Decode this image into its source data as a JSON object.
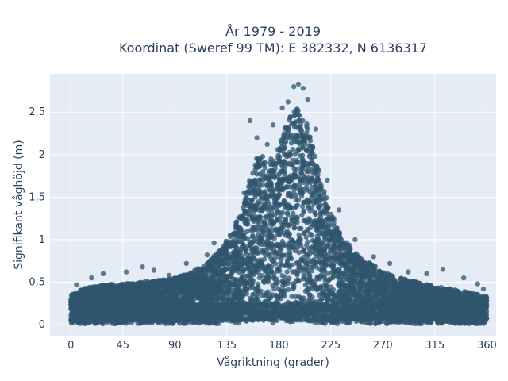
{
  "chart_data": {
    "type": "scatter",
    "title_line1": "År 1979 - 2019",
    "title_line2": "Koordinat (Sweref 99 TM): E 382332, N 6136317",
    "xlabel": "Vågriktning (grader)",
    "ylabel": "Signifikant våghöjd (m)",
    "xlim": [
      -18,
      368
    ],
    "ylim": [
      -0.13,
      2.95
    ],
    "xticks": [
      0,
      45,
      90,
      135,
      180,
      225,
      270,
      315,
      360
    ],
    "xtick_labels": [
      "0",
      "45",
      "90",
      "135",
      "180",
      "225",
      "270",
      "315",
      "360"
    ],
    "yticks": [
      0,
      0.5,
      1,
      1.5,
      2,
      2.5
    ],
    "ytick_labels": [
      "0",
      "0,5",
      "1",
      "1,5",
      "2",
      "2,5"
    ],
    "grid": true,
    "legend": "none",
    "marker_color": "#2f566e",
    "envelope": {
      "x": [
        0,
        10,
        20,
        30,
        45,
        60,
        75,
        90,
        105,
        120,
        130,
        140,
        150,
        155,
        160,
        165,
        170,
        175,
        180,
        185,
        190,
        195,
        200,
        205,
        210,
        215,
        220,
        225,
        230,
        240,
        250,
        260,
        270,
        285,
        300,
        315,
        330,
        345,
        360
      ],
      "y_max": [
        0.35,
        0.42,
        0.45,
        0.48,
        0.48,
        0.5,
        0.52,
        0.55,
        0.62,
        0.75,
        0.9,
        1.1,
        1.45,
        1.75,
        1.95,
        2.0,
        1.95,
        1.95,
        2.1,
        2.3,
        2.45,
        2.55,
        2.5,
        2.35,
        2.1,
        1.8,
        1.55,
        1.35,
        1.15,
        0.95,
        0.8,
        0.72,
        0.62,
        0.55,
        0.5,
        0.45,
        0.42,
        0.38,
        0.33
      ],
      "y_min_band": 0.15
    },
    "outliers": [
      {
        "x": 5,
        "y": 0.47
      },
      {
        "x": 18,
        "y": 0.55
      },
      {
        "x": 28,
        "y": 0.6
      },
      {
        "x": 48,
        "y": 0.62
      },
      {
        "x": 62,
        "y": 0.68
      },
      {
        "x": 72,
        "y": 0.64
      },
      {
        "x": 85,
        "y": 0.58
      },
      {
        "x": 100,
        "y": 0.72
      },
      {
        "x": 110,
        "y": 0.66
      },
      {
        "x": 118,
        "y": 0.82
      },
      {
        "x": 124,
        "y": 0.96
      },
      {
        "x": 150,
        "y": 1.55
      },
      {
        "x": 155,
        "y": 2.4
      },
      {
        "x": 161,
        "y": 2.2
      },
      {
        "x": 170,
        "y": 2.12
      },
      {
        "x": 175,
        "y": 2.35
      },
      {
        "x": 183,
        "y": 2.55
      },
      {
        "x": 188,
        "y": 2.62
      },
      {
        "x": 193,
        "y": 2.8
      },
      {
        "x": 197,
        "y": 2.83
      },
      {
        "x": 201,
        "y": 2.78
      },
      {
        "x": 205,
        "y": 2.65
      },
      {
        "x": 212,
        "y": 2.3
      },
      {
        "x": 222,
        "y": 1.7
      },
      {
        "x": 232,
        "y": 1.35
      },
      {
        "x": 246,
        "y": 1.0
      },
      {
        "x": 262,
        "y": 0.8
      },
      {
        "x": 276,
        "y": 0.72
      },
      {
        "x": 292,
        "y": 0.62
      },
      {
        "x": 308,
        "y": 0.6
      },
      {
        "x": 322,
        "y": 0.65
      },
      {
        "x": 340,
        "y": 0.55
      },
      {
        "x": 352,
        "y": 0.48
      },
      {
        "x": 357,
        "y": 0.42
      }
    ]
  }
}
